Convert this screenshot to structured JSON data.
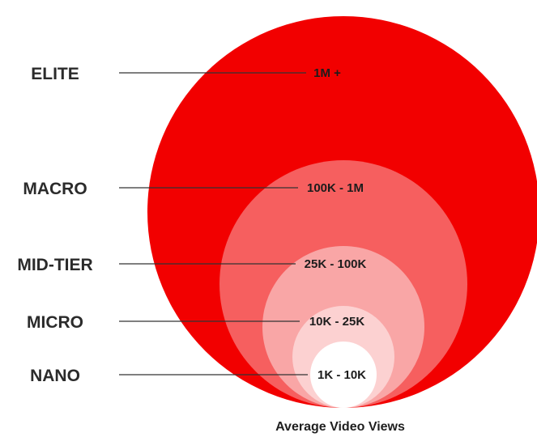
{
  "tiers": [
    {
      "name": "ELITE",
      "range": "1M +",
      "color": "#f20000"
    },
    {
      "name": "MACRO",
      "range": "100K - 1M",
      "color": "#f65f5f"
    },
    {
      "name": "MID-TIER",
      "range": "25K - 100K",
      "color": "#f9a6a6"
    },
    {
      "name": "MICRO",
      "range": "10K - 25K",
      "color": "#fcd1d1"
    },
    {
      "name": "NANO",
      "range": "1K - 10K",
      "color": "#ffffff"
    }
  ],
  "caption": "Average Video Views",
  "colors": {
    "label_text": "#2b2b2b",
    "leader_line": "#333333"
  }
}
